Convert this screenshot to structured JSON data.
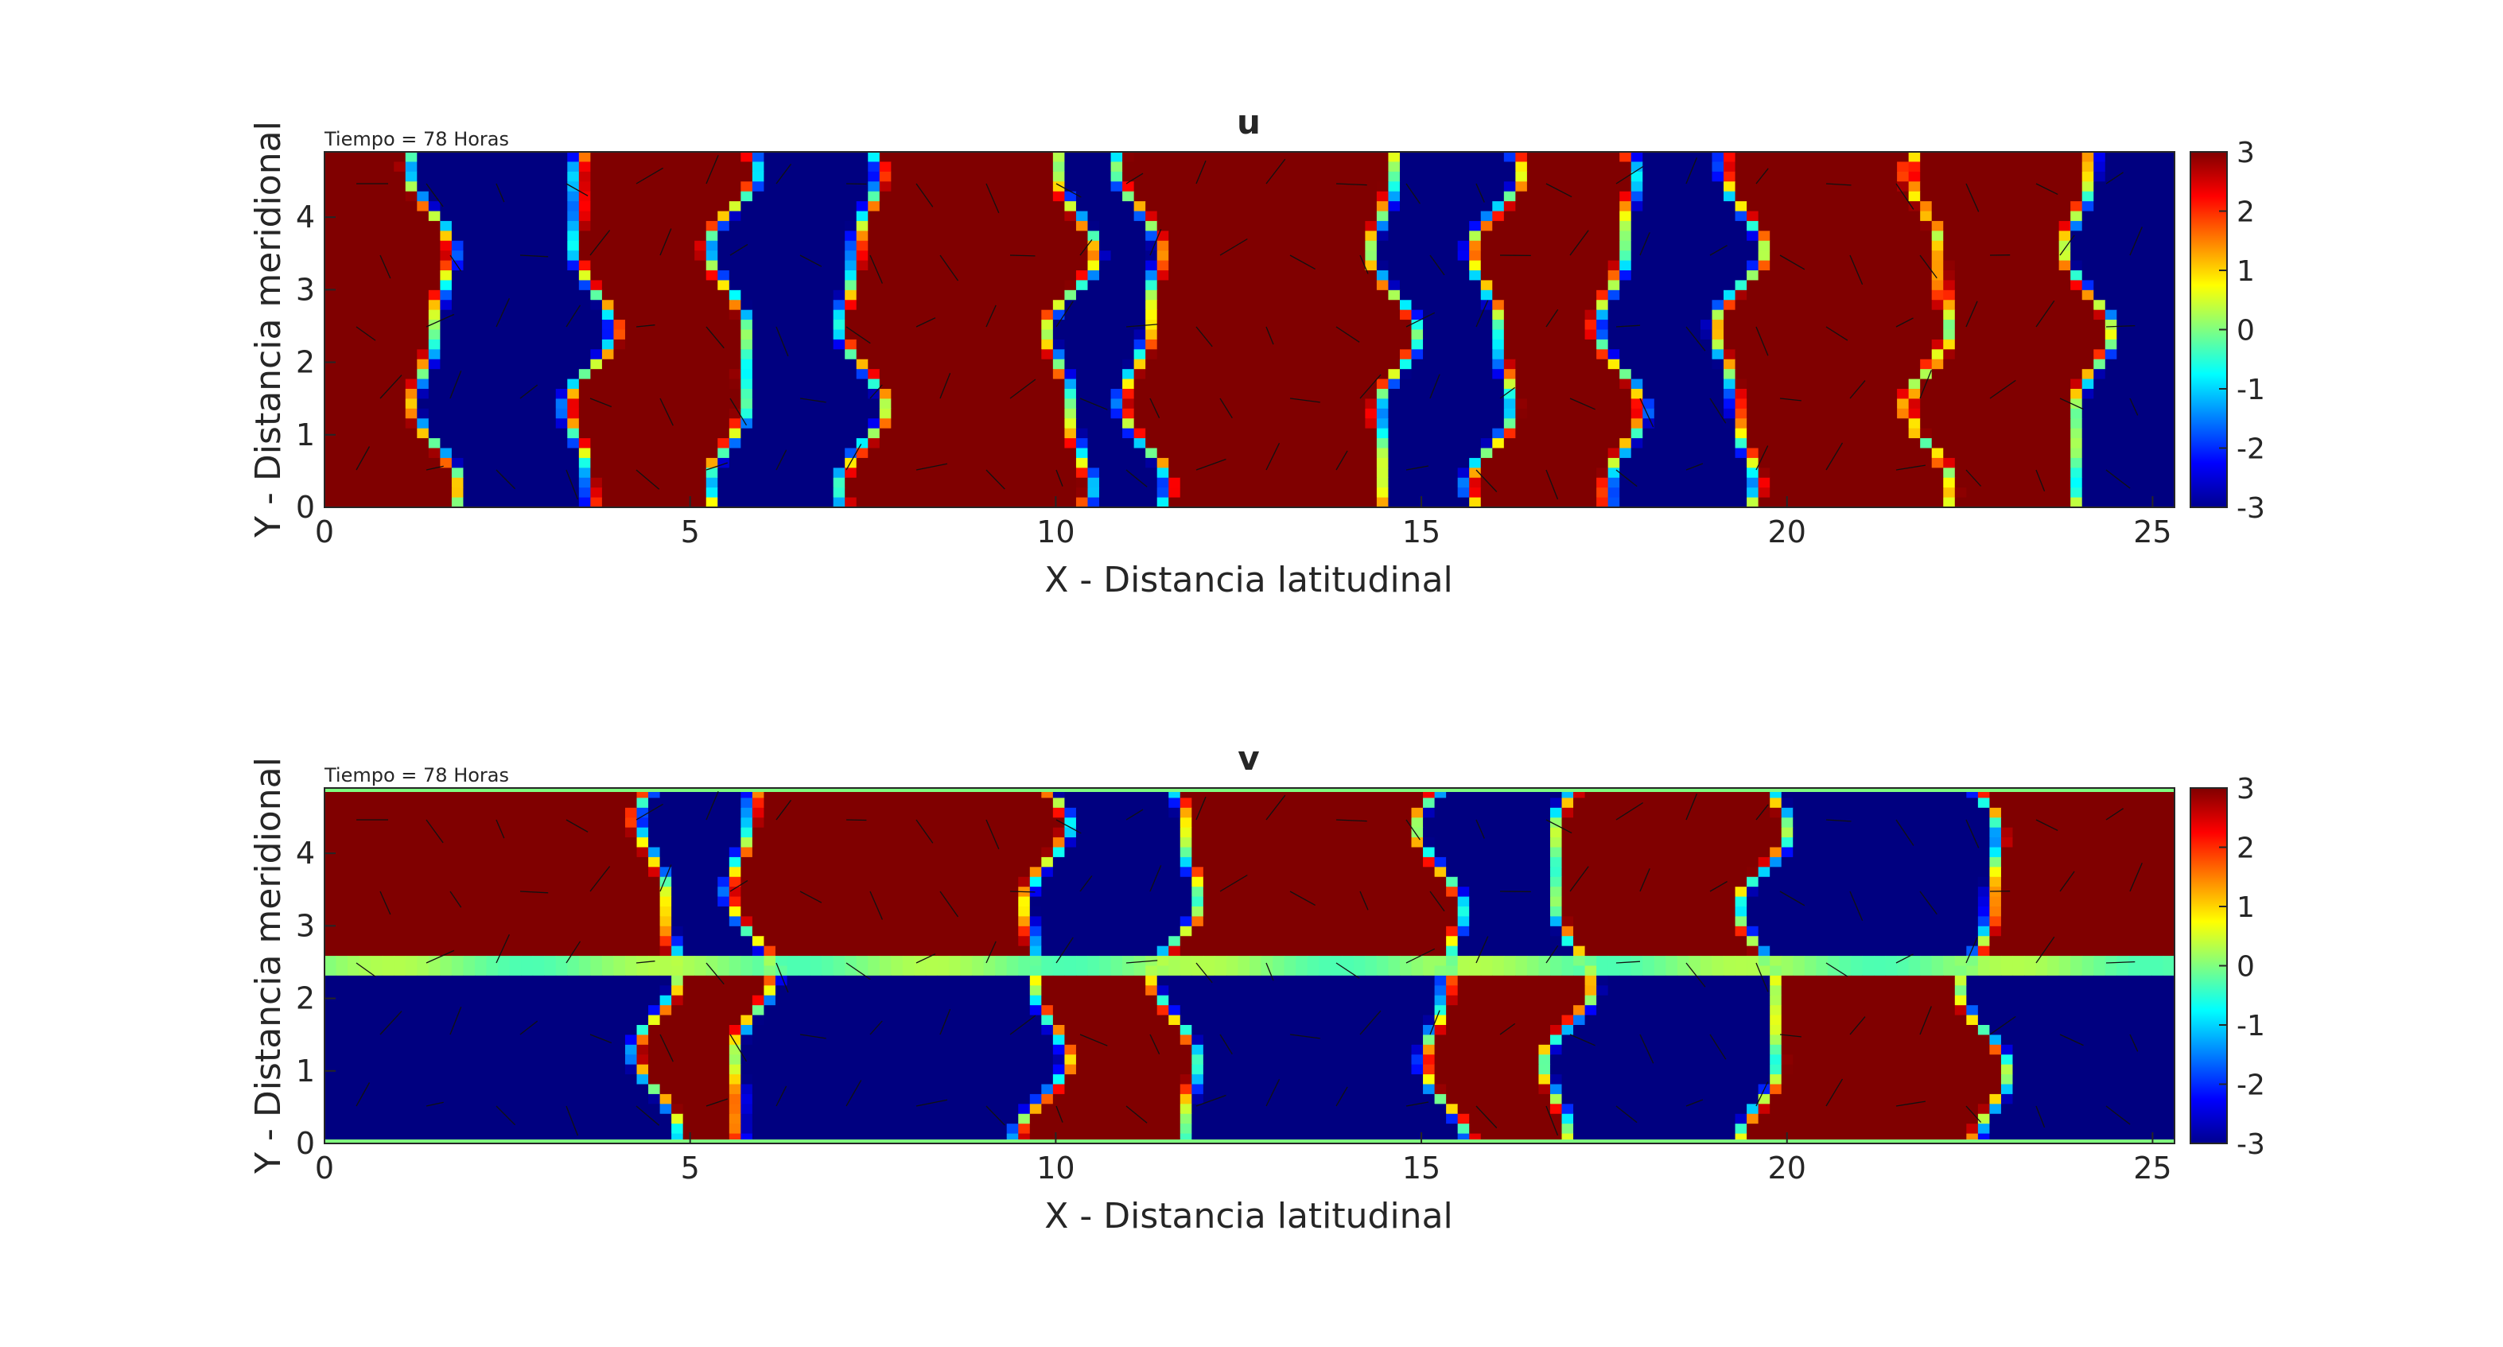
{
  "chart_data": [
    {
      "type": "heatmap",
      "title": "u",
      "annotation": "Tiempo = 78 Horas",
      "xlabel": "X - Distancia latitudinal",
      "ylabel": "Y - Distancia meridional",
      "xlim": [
        0,
        25.3
      ],
      "ylim": [
        0,
        4.9
      ],
      "xticks": [
        0,
        5,
        10,
        15,
        20,
        25
      ],
      "yticks": [
        0,
        1,
        2,
        3,
        4
      ],
      "colorbar": {
        "colormap": "jet",
        "range": [
          -3,
          3
        ],
        "ticks": [
          3,
          2,
          1,
          0,
          -1,
          -2,
          -3
        ]
      },
      "overlay": "quiver arrows (black)",
      "field": {
        "description": "Estimated u field: alternating saturated positive (dark red) / negative (dark blue) bands across x, with thin jet-colored transitions at the boundaries.",
        "x_band_edges": [
          0,
          1.5,
          3.6,
          5.6,
          7.3,
          10.2,
          11.2,
          14.6,
          16.0,
          17.7,
          19.3,
          22.0,
          24.1,
          25.3
        ],
        "band_signs": [
          1,
          -1,
          1,
          -1,
          1,
          -1,
          1,
          -1,
          1,
          -1,
          1,
          1,
          -1
        ],
        "vmin": -3,
        "vmax": 3
      }
    },
    {
      "type": "heatmap",
      "title": "v",
      "annotation": "Tiempo = 78 Horas",
      "xlabel": "X - Distancia latitudinal",
      "ylabel": "Y - Distancia meridional",
      "xlim": [
        0,
        25.3
      ],
      "ylim": [
        0,
        4.9
      ],
      "xticks": [
        0,
        5,
        10,
        15,
        20,
        25
      ],
      "yticks": [
        0,
        1,
        2,
        3,
        4
      ],
      "colorbar": {
        "colormap": "jet",
        "range": [
          -3,
          3
        ],
        "ticks": [
          3,
          2,
          1,
          0,
          -1,
          -2,
          -3
        ]
      },
      "overlay": "quiver arrows (black)",
      "field": {
        "description": "Estimated v field: antisymmetric about y = 2.45 (value ~0 along the midline), with alternating saturated regions across x.",
        "x_band_edges": [
          0,
          4.6,
          5.8,
          9.8,
          11.7,
          15.3,
          17.0,
          19.7,
          22.7,
          25.3
        ],
        "band_signs": [
          1,
          -1,
          1,
          -1,
          1,
          -1,
          1,
          -1,
          1
        ],
        "midline_y": 2.45,
        "vmin": -3,
        "vmax": 3
      }
    }
  ]
}
